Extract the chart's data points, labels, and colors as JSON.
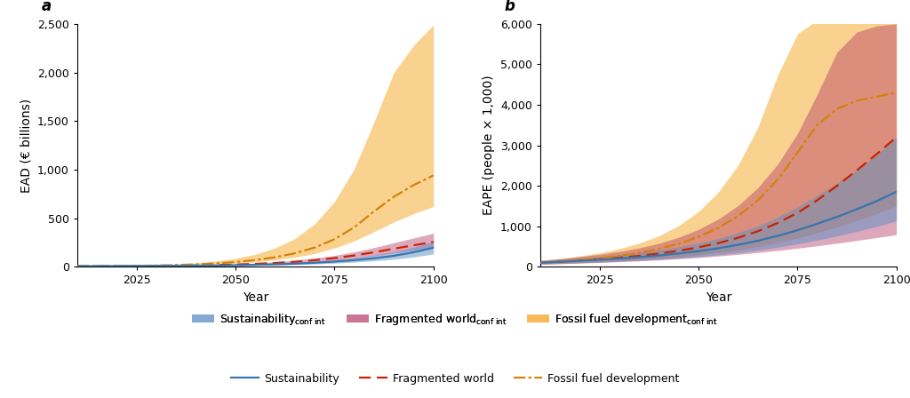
{
  "years": [
    2010,
    2015,
    2020,
    2025,
    2030,
    2035,
    2040,
    2045,
    2050,
    2055,
    2060,
    2065,
    2070,
    2075,
    2080,
    2085,
    2090,
    2095,
    2100
  ],
  "a_sust_med": [
    5,
    5,
    6,
    6,
    7,
    8,
    10,
    12,
    15,
    19,
    24,
    31,
    40,
    52,
    67,
    87,
    112,
    148,
    195
  ],
  "a_sust_lo": [
    4,
    4,
    5,
    5,
    6,
    7,
    8,
    9,
    11,
    14,
    17,
    22,
    28,
    36,
    47,
    60,
    78,
    100,
    130
  ],
  "a_sust_hi": [
    6,
    6,
    7,
    8,
    9,
    10,
    12,
    15,
    20,
    25,
    32,
    42,
    55,
    72,
    93,
    120,
    155,
    200,
    260
  ],
  "a_frag_med": [
    5,
    5,
    6,
    7,
    8,
    10,
    13,
    17,
    22,
    29,
    38,
    50,
    67,
    88,
    115,
    148,
    185,
    220,
    255
  ],
  "a_frag_lo": [
    4,
    4,
    5,
    6,
    7,
    8,
    10,
    13,
    17,
    22,
    29,
    38,
    51,
    67,
    87,
    112,
    140,
    168,
    198
  ],
  "a_frag_hi": [
    6,
    6,
    7,
    8,
    10,
    12,
    16,
    21,
    28,
    37,
    50,
    66,
    88,
    116,
    152,
    196,
    247,
    295,
    345
  ],
  "a_fossil_med": [
    5,
    6,
    7,
    9,
    12,
    17,
    24,
    34,
    48,
    68,
    97,
    138,
    197,
    283,
    405,
    570,
    720,
    840,
    940
  ],
  "a_fossil_lo": [
    4,
    5,
    6,
    7,
    9,
    13,
    18,
    25,
    35,
    49,
    69,
    97,
    136,
    192,
    265,
    360,
    460,
    545,
    620
  ],
  "a_fossil_hi": [
    6,
    7,
    9,
    12,
    17,
    25,
    38,
    57,
    85,
    128,
    193,
    290,
    440,
    670,
    1010,
    1490,
    2000,
    2280,
    2490
  ],
  "b_sust_med": [
    100,
    120,
    145,
    170,
    200,
    235,
    275,
    325,
    385,
    455,
    540,
    640,
    760,
    900,
    1060,
    1230,
    1420,
    1620,
    1850
  ],
  "b_sust_lo": [
    70,
    82,
    98,
    113,
    132,
    154,
    180,
    211,
    248,
    292,
    344,
    406,
    479,
    563,
    657,
    758,
    872,
    993,
    1130
  ],
  "b_sust_hi": [
    145,
    174,
    210,
    248,
    294,
    347,
    411,
    490,
    585,
    699,
    839,
    1010,
    1220,
    1480,
    1760,
    2060,
    2390,
    2760,
    3200
  ],
  "b_frag_med": [
    100,
    125,
    155,
    185,
    222,
    267,
    323,
    392,
    477,
    582,
    713,
    876,
    1080,
    1330,
    1640,
    2000,
    2380,
    2780,
    3200
  ],
  "b_frag_lo": [
    60,
    73,
    88,
    103,
    122,
    143,
    167,
    195,
    227,
    263,
    304,
    350,
    400,
    455,
    515,
    580,
    648,
    718,
    790
  ],
  "b_frag_hi": [
    155,
    196,
    250,
    305,
    375,
    464,
    578,
    726,
    920,
    1175,
    1510,
    1950,
    2530,
    3290,
    4260,
    5300,
    5800,
    5950,
    6000
  ],
  "b_fossil_med": [
    100,
    130,
    168,
    212,
    270,
    344,
    441,
    568,
    736,
    958,
    1252,
    1640,
    2150,
    2820,
    3500,
    3900,
    4100,
    4200,
    4300
  ],
  "b_fossil_lo": [
    60,
    75,
    93,
    113,
    138,
    167,
    201,
    242,
    291,
    349,
    418,
    499,
    595,
    707,
    836,
    982,
    1140,
    1310,
    1500
  ],
  "b_fossil_hi": [
    150,
    200,
    265,
    342,
    444,
    580,
    764,
    1015,
    1360,
    1840,
    2510,
    3440,
    4730,
    5750,
    6100,
    6200,
    6300,
    6350,
    6400
  ],
  "color_sust_fill": "#5b8fc4",
  "color_frag_fill": "#b03060",
  "color_fossil_fill": "#f5a623",
  "color_sust_line": "#3575b0",
  "color_frag_line": "#cc2200",
  "color_fossil_line": "#d4820a",
  "alpha_fossil": 0.5,
  "alpha_frag": 0.42,
  "alpha_sust": 0.5,
  "a_ylabel": "EAD (€ billions)",
  "a_ylim": [
    0,
    2500
  ],
  "a_yticks": [
    0,
    500,
    1000,
    1500,
    2000,
    2500
  ],
  "b_ylabel": "EAPE (people × 1,000)",
  "b_ylim": [
    0,
    6000
  ],
  "b_yticks": [
    0,
    1000,
    2000,
    3000,
    4000,
    5000,
    6000
  ],
  "xlabel": "Year",
  "xlim": [
    2010,
    2100
  ],
  "xticks": [
    2025,
    2050,
    2075,
    2100
  ],
  "panel_a_label": "a",
  "panel_b_label": "b"
}
